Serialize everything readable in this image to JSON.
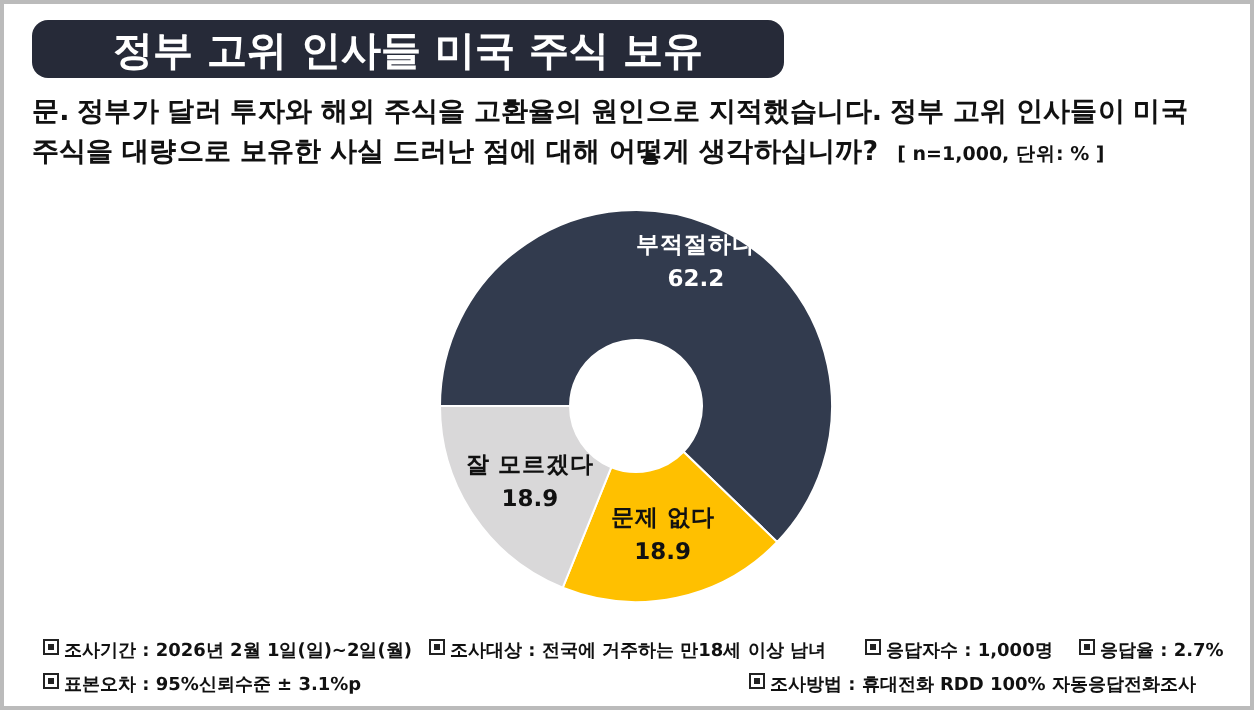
{
  "chart_data": {
    "type": "donut",
    "title": "정부 고위 인사들 미국 주식 보유",
    "subtitle": "문. 정부가 달러 투자와 해외 주식을 고환율의 원인으로 지적했습니다. 정부 고위 인사들이 미국 주식을 대량으로 보유한 사실 드러난 점에 대해 어떻게 생각하십니까?",
    "categories": [
      "부적절하다",
      "문제 없다",
      "잘 모르겠다"
    ],
    "values": [
      62.2,
      18.9,
      18.9
    ],
    "colors": [
      "#323b4e",
      "#ffc000",
      "#d9d8d9"
    ],
    "data_labels": true,
    "annotations": [
      "[ n=1,000, 단위: % ]",
      "조사기간 : 2026년 2월 1일(일)~2일(월)",
      "조사대상 : 전국에 거주하는 만18세 이상 남녀",
      "응답자수 : 1,000명",
      "응답율 : 2.7%",
      "표본오차 : 95%신뢰수준 ± 3.1%p",
      "조사방법 : 휴대전화 RDD 100% 자동응답전화조사"
    ]
  }
}
